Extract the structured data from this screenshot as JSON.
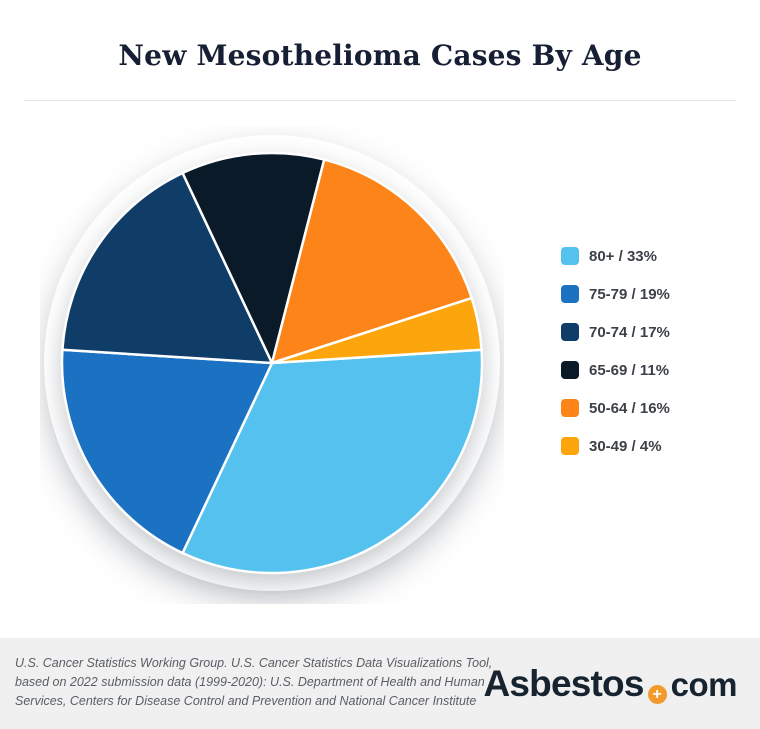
{
  "header": {
    "title": "New Mesothelioma Cases By Age"
  },
  "chart_data": {
    "type": "pie",
    "title": "New Mesothelioma Cases By Age",
    "unit": "percent",
    "legend_position": "right",
    "direction": "clockwise",
    "start_angle_clockwise_from_north_deg": 86.4,
    "slice_gap_stroke_color": "#ffffff",
    "slices": [
      {
        "category": "80+",
        "value": 33,
        "color": "#55c1ee",
        "legend_label": "80+ / 33%"
      },
      {
        "category": "75-79",
        "value": 19,
        "color": "#1b71c2",
        "legend_label": "75-79 / 19%"
      },
      {
        "category": "70-74",
        "value": 17,
        "color": "#0f3d68",
        "legend_label": "70-74 / 17%"
      },
      {
        "category": "65-69",
        "value": 11,
        "color": "#0a1a29",
        "legend_label": "65-69 / 11%"
      },
      {
        "category": "50-64",
        "value": 16,
        "color": "#fc8418",
        "legend_label": "50-64 / 16%"
      },
      {
        "category": "30-49",
        "value": 4,
        "color": "#fc** a50d",
        "legend_label": "30-49 / 4%"
      }
    ]
  },
  "footer": {
    "source_lines": [
      "U.S. Cancer Statistics Working Group. U.S. Cancer Statistics Data Visualizations Tool,",
      "based on 2022 submission data (1999-2020): U.S. Department of Health and Human",
      "Services, Centers for Disease Control and Prevention and National Cancer Institute"
    ],
    "logo": {
      "brand": "Asbestos",
      "separator_icon": "plus-badge",
      "tld": "com"
    }
  }
}
